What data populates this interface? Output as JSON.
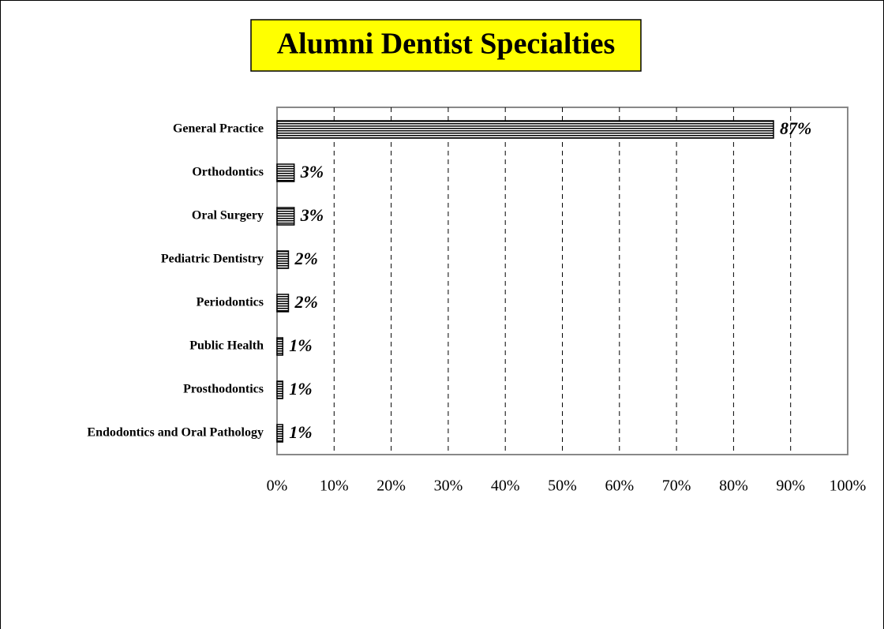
{
  "chart_data": {
    "type": "bar",
    "orientation": "horizontal",
    "title": "Alumni  Dentist Specialties",
    "categories": [
      "General Practice",
      "Orthodontics",
      "Oral Surgery",
      "Pediatric Dentistry",
      "Periodontics",
      "Public Health",
      "Prosthodontics",
      "Endodontics and Oral Pathology"
    ],
    "values": [
      87,
      3,
      3,
      2,
      2,
      1,
      1,
      1
    ],
    "value_labels": [
      "87%",
      "3%",
      "3%",
      "2%",
      "2%",
      "1%",
      "1%",
      "1%"
    ],
    "color": "#000000",
    "xlim": [
      0,
      100
    ],
    "xticks": [
      {
        "value": 0,
        "label": "0%"
      },
      {
        "value": 10,
        "label": "10%"
      },
      {
        "value": 20,
        "label": "20%"
      },
      {
        "value": 30,
        "label": "30%"
      },
      {
        "value": 40,
        "label": "40%"
      },
      {
        "value": 50,
        "label": "50%"
      },
      {
        "value": 60,
        "label": "60%"
      },
      {
        "value": 70,
        "label": "70%"
      },
      {
        "value": 80,
        "label": "80%"
      },
      {
        "value": 90,
        "label": "90%"
      },
      {
        "value": 100,
        "label": "100%"
      }
    ],
    "grid": true
  }
}
